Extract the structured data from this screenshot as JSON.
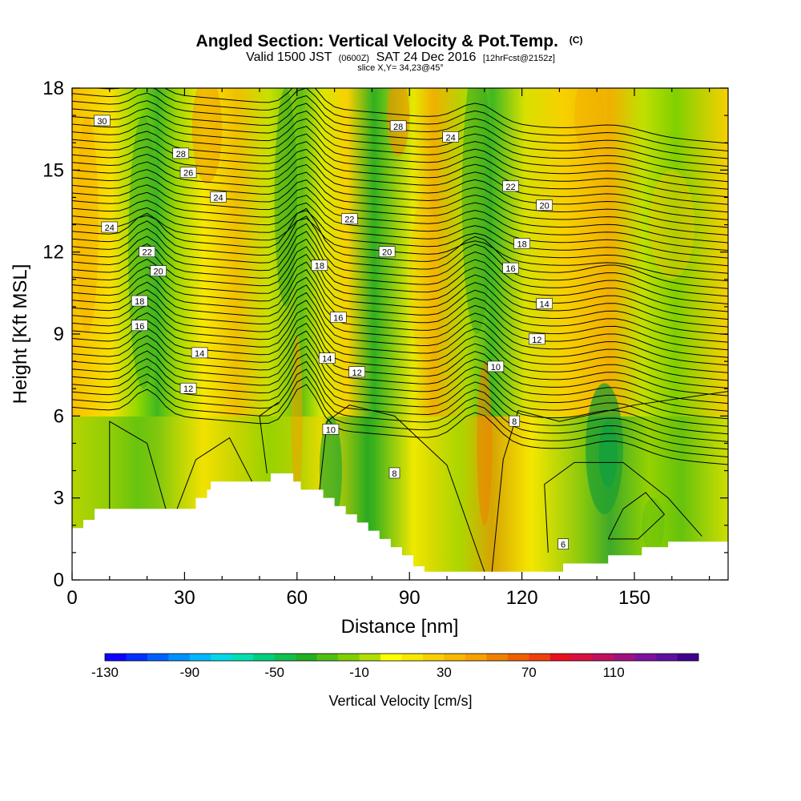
{
  "chart_data": {
    "type": "heatmap",
    "title": "Angled Section: Vertical Velocity & Pot.Temp.",
    "title_units": "(C)",
    "subtitle_parts": [
      "Valid 1500 JST",
      "(0600Z)",
      "SAT 24 Dec 2016",
      "[12hrFcst@2152z]"
    ],
    "slice_label": "slice X,Y= 34,23@45°",
    "xlabel": "Distance [nm]",
    "ylabel": "Height [Kft MSL]",
    "xlim": [
      0,
      175
    ],
    "ylim": [
      0,
      18
    ],
    "x_ticks": [
      0,
      30,
      60,
      90,
      120,
      150
    ],
    "x_tick_labels": [
      "0",
      "30",
      "60",
      "90",
      "120",
      "150"
    ],
    "y_ticks": [
      0,
      3,
      6,
      9,
      12,
      15,
      18
    ],
    "y_tick_labels": [
      "0",
      "3",
      "6",
      "9",
      "12",
      "15",
      "18"
    ],
    "colorbar": {
      "label": "Vertical Velocity [cm/s]",
      "min": -130,
      "max": 150,
      "step": 10,
      "tick_values": [
        -130,
        -90,
        -50,
        -10,
        30,
        70,
        110
      ],
      "tick_labels": [
        "-130",
        "-90",
        "-50",
        "-10",
        "30",
        "70",
        "110"
      ],
      "colors": [
        "#1000ff",
        "#0030ff",
        "#0060ff",
        "#0090ff",
        "#00b8ff",
        "#00d8e8",
        "#00e0b0",
        "#00d080",
        "#10c050",
        "#20b020",
        "#50c010",
        "#80d000",
        "#b0e000",
        "#ffff00",
        "#f8e800",
        "#f8d000",
        "#f8b800",
        "#f8a000",
        "#f08000",
        "#f06000",
        "#f04010",
        "#e81020",
        "#d81040",
        "#c01060",
        "#a01080",
        "#8010a0",
        "#6010a0",
        "#400090"
      ]
    },
    "theta_contours": {
      "labels": [
        {
          "x": 8,
          "y": 16.8,
          "text": "30"
        },
        {
          "x": 29,
          "y": 15.6,
          "text": "28"
        },
        {
          "x": 31,
          "y": 14.9,
          "text": "26"
        },
        {
          "x": 39,
          "y": 14.0,
          "text": "24"
        },
        {
          "x": 10,
          "y": 12.9,
          "text": "24"
        },
        {
          "x": 20,
          "y": 12.0,
          "text": "22"
        },
        {
          "x": 23,
          "y": 11.3,
          "text": "20"
        },
        {
          "x": 18,
          "y": 10.2,
          "text": "18"
        },
        {
          "x": 18,
          "y": 9.3,
          "text": "16"
        },
        {
          "x": 34,
          "y": 8.3,
          "text": "14"
        },
        {
          "x": 31,
          "y": 7.0,
          "text": "12"
        },
        {
          "x": 87,
          "y": 16.6,
          "text": "28"
        },
        {
          "x": 101,
          "y": 16.2,
          "text": "24"
        },
        {
          "x": 74,
          "y": 13.2,
          "text": "22"
        },
        {
          "x": 84,
          "y": 12.0,
          "text": "20"
        },
        {
          "x": 66,
          "y": 11.5,
          "text": "18"
        },
        {
          "x": 71,
          "y": 9.6,
          "text": "16"
        },
        {
          "x": 68,
          "y": 8.1,
          "text": "14"
        },
        {
          "x": 76,
          "y": 7.6,
          "text": "12"
        },
        {
          "x": 69,
          "y": 5.5,
          "text": "10"
        },
        {
          "x": 86,
          "y": 3.9,
          "text": "8"
        },
        {
          "x": 117,
          "y": 14.4,
          "text": "22"
        },
        {
          "x": 126,
          "y": 13.7,
          "text": "20"
        },
        {
          "x": 120,
          "y": 12.3,
          "text": "18"
        },
        {
          "x": 117,
          "y": 11.4,
          "text": "16"
        },
        {
          "x": 126,
          "y": 10.1,
          "text": "14"
        },
        {
          "x": 124,
          "y": 8.8,
          "text": "12"
        },
        {
          "x": 113,
          "y": 7.8,
          "text": "10"
        },
        {
          "x": 118,
          "y": 5.8,
          "text": "8"
        },
        {
          "x": 131,
          "y": 1.3,
          "text": "6"
        }
      ]
    },
    "terrain": [
      [
        0,
        1.9
      ],
      [
        3,
        2.2
      ],
      [
        6,
        2.6
      ],
      [
        19,
        2.6
      ],
      [
        30,
        2.6
      ],
      [
        33,
        3.0
      ],
      [
        36,
        3.3
      ],
      [
        37,
        3.6
      ],
      [
        49,
        3.6
      ],
      [
        52,
        3.6
      ],
      [
        53,
        3.9
      ],
      [
        58,
        3.9
      ],
      [
        59,
        3.6
      ],
      [
        61,
        3.3
      ],
      [
        64,
        3.3
      ],
      [
        67,
        3.0
      ],
      [
        70,
        2.7
      ],
      [
        73,
        2.4
      ],
      [
        76,
        2.1
      ],
      [
        79,
        1.8
      ],
      [
        82,
        1.5
      ],
      [
        85,
        1.2
      ],
      [
        88,
        0.9
      ],
      [
        91,
        0.5
      ],
      [
        94,
        0.3
      ],
      [
        106,
        0.3
      ],
      [
        127,
        0.3
      ],
      [
        131,
        0.6
      ],
      [
        143,
        0.9
      ],
      [
        152,
        1.2
      ],
      [
        159,
        1.4
      ],
      [
        175,
        1.6
      ]
    ]
  }
}
